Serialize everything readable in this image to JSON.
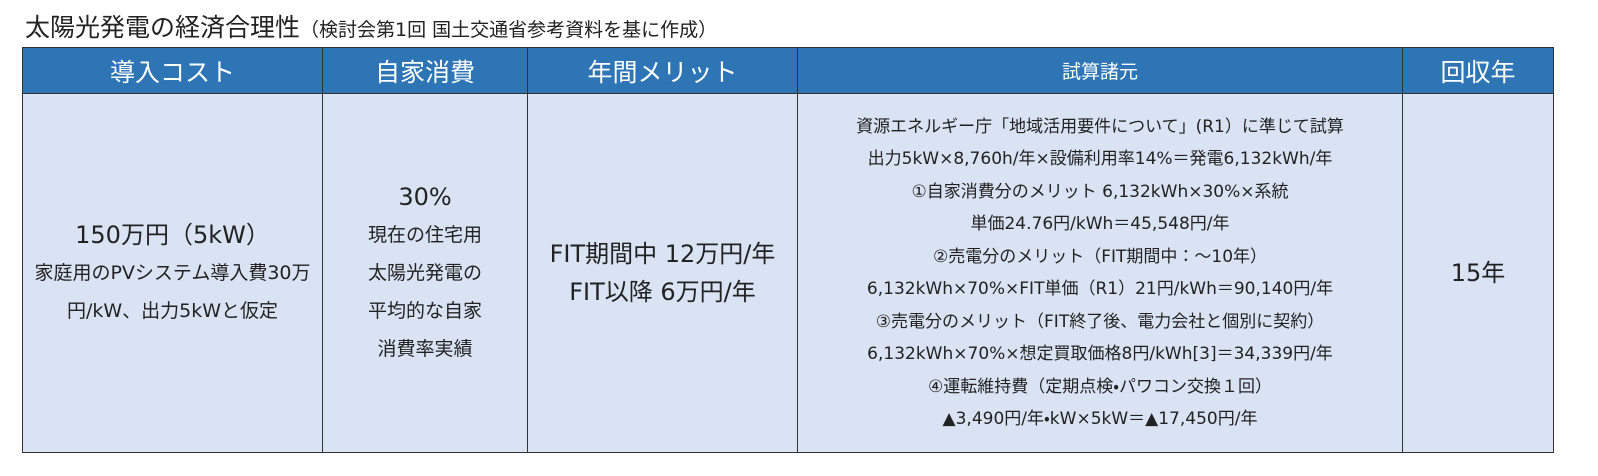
{
  "header": {
    "title": "太陽光発電の経済合理性",
    "subtitle": "（検討会第1回 国土交通省参考資料を基に作成）"
  },
  "table": {
    "columns": [
      "導入コスト",
      "自家消費",
      "年間メリット",
      "試算諸元",
      "回収年"
    ],
    "rows": [
      [
        [
          "150万円（5kW）",
          "家庭用のPVシステム導入費30万円/kW、出力5kWと仮定"
        ],
        [
          "30%",
          "現在の住宅用太陽光発電の平均的な自家消費率実績"
        ],
        [
          "FIT期間中 12万円/年",
          "FIT以降 6万円/年"
        ],
        [
          "資源エネルギー庁「地域活用要件について」(R1）に準じて試算",
          "出力5kW×8,760h/年×設備利用率14%＝発電6,132kWh/年",
          "①自家消費分のメリット 6,132kWh×30%×系統",
          "単価24.76円/kWh＝45,548円/年",
          "②売電分のメリット（FIT期間中：～10年）",
          "6,132kWh×70%×FIT単価（R1）21円/kWh＝90,140円/年",
          "③売電分のメリット（FIT終了後、電力会社と個別に契約）",
          "6,132kWh×70%×想定買取価格8円/kWh[3]＝34,339円/年",
          "④運転維持費（定期点検・パワコン交換１回）",
          "▲3,490円/年・kW×5kW＝▲17,450円/年"
        ],
        [
          "15年"
        ]
      ]
    ]
  }
}
